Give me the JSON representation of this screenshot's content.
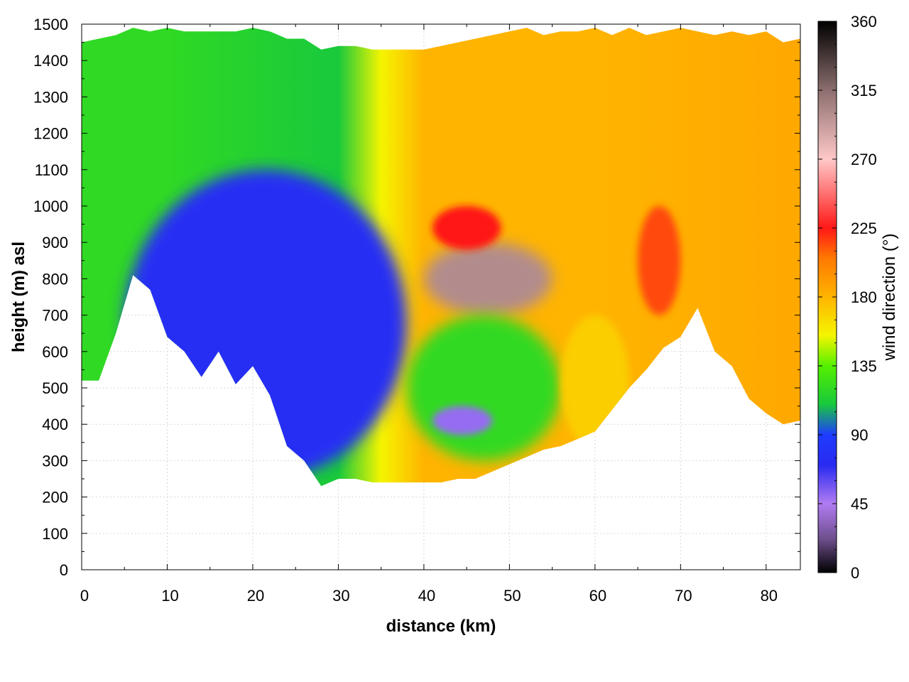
{
  "chart_data": {
    "type": "heatmap",
    "title": "",
    "xlabel": "distance (km)",
    "ylabel": "height (m) asl",
    "xlim": [
      0,
      84
    ],
    "ylim": [
      0,
      1500
    ],
    "x_ticks": [
      "0",
      "10",
      "20",
      "30",
      "40",
      "50",
      "60",
      "70",
      "80"
    ],
    "y_ticks": [
      "0",
      "100",
      "200",
      "300",
      "400",
      "500",
      "600",
      "700",
      "800",
      "900",
      "1000",
      "1100",
      "1200",
      "1300",
      "1400",
      "1500"
    ],
    "grid": true,
    "colorbar": {
      "label": "wind direction (°)",
      "range": [
        0,
        360
      ],
      "ticks": [
        "0",
        "45",
        "90",
        "135",
        "180",
        "225",
        "270",
        "315",
        "360"
      ],
      "palette": [
        {
          "value": 0,
          "color": "#000000"
        },
        {
          "value": 22,
          "color": "#6e4f8c"
        },
        {
          "value": 45,
          "color": "#b07cf2"
        },
        {
          "value": 70,
          "color": "#2a2af0"
        },
        {
          "value": 90,
          "color": "#1e3cff"
        },
        {
          "value": 110,
          "color": "#18c93c"
        },
        {
          "value": 135,
          "color": "#55f000"
        },
        {
          "value": 155,
          "color": "#f5f500"
        },
        {
          "value": 180,
          "color": "#ffb400"
        },
        {
          "value": 205,
          "color": "#ff7a00"
        },
        {
          "value": 225,
          "color": "#ff1818"
        },
        {
          "value": 270,
          "color": "#ffc8c8"
        },
        {
          "value": 315,
          "color": "#8c6e6e"
        },
        {
          "value": 360,
          "color": "#000000"
        }
      ]
    },
    "terrain_profile": {
      "distance_km": [
        0,
        2,
        4,
        6,
        8,
        10,
        12,
        14,
        16,
        18,
        20,
        22,
        24,
        26,
        28,
        30,
        32,
        34,
        36,
        38,
        40,
        42,
        44,
        46,
        48,
        50,
        52,
        54,
        56,
        58,
        60,
        62,
        64,
        66,
        68,
        70,
        72,
        74,
        76,
        78,
        80,
        82,
        84
      ],
      "height_m": [
        520,
        520,
        650,
        810,
        770,
        640,
        600,
        530,
        600,
        510,
        560,
        480,
        340,
        300,
        230,
        250,
        250,
        240,
        240,
        240,
        240,
        240,
        250,
        250,
        270,
        290,
        310,
        330,
        340,
        360,
        380,
        440,
        500,
        550,
        610,
        640,
        720,
        600,
        560,
        470,
        430,
        400,
        410
      ]
    },
    "data_top_profile": {
      "distance_km": [
        0,
        2,
        4,
        6,
        8,
        10,
        12,
        14,
        16,
        18,
        20,
        22,
        24,
        26,
        28,
        30,
        32,
        34,
        36,
        38,
        40,
        42,
        44,
        46,
        48,
        50,
        52,
        54,
        56,
        58,
        60,
        62,
        64,
        66,
        68,
        70,
        72,
        74,
        76,
        78,
        80,
        82,
        84
      ],
      "height_m": [
        1450,
        1460,
        1470,
        1490,
        1480,
        1490,
        1480,
        1480,
        1480,
        1480,
        1490,
        1480,
        1460,
        1460,
        1430,
        1440,
        1440,
        1430,
        1430,
        1430,
        1430,
        1440,
        1450,
        1460,
        1470,
        1480,
        1490,
        1470,
        1480,
        1480,
        1490,
        1470,
        1490,
        1470,
        1480,
        1490,
        1480,
        1470,
        1480,
        1470,
        1480,
        1450,
        1460
      ]
    },
    "field_regions": [
      {
        "region": "background_west_to_east",
        "direction_deg_by_distance": [
          [
            0,
            120
          ],
          [
            10,
            120
          ],
          [
            30,
            110
          ],
          [
            35,
            155
          ],
          [
            40,
            180
          ],
          [
            60,
            180
          ],
          [
            84,
            185
          ]
        ]
      },
      {
        "region": "valley_core",
        "distance_km": [
          5,
          38
        ],
        "height_m": [
          250,
          1100
        ],
        "direction_deg": 75
      },
      {
        "region": "lee_eddy",
        "distance_km": [
          40,
          55
        ],
        "height_m": [
          700,
          900
        ],
        "direction_deg": 300
      },
      {
        "region": "southerly_jet",
        "distance_km": [
          41,
          49
        ],
        "height_m": [
          880,
          1000
        ],
        "direction_deg": 225
      },
      {
        "region": "east_maximum",
        "distance_km": [
          65,
          70
        ],
        "height_m": [
          700,
          1000
        ],
        "direction_deg": 215
      },
      {
        "region": "lower_easterly",
        "distance_km": [
          38,
          56
        ],
        "height_m": [
          300,
          700
        ],
        "direction_deg": 120
      },
      {
        "region": "low_pocket",
        "distance_km": [
          41,
          48
        ],
        "height_m": [
          370,
          450
        ],
        "direction_deg": 50
      },
      {
        "region": "east_lower_branch",
        "distance_km": [
          56,
          64
        ],
        "height_m": [
          330,
          700
        ],
        "direction_deg": 170
      }
    ]
  }
}
